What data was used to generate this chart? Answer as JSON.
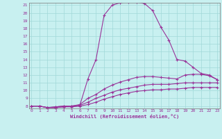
{
  "xlabel": "Windchill (Refroidissement éolien,°C)",
  "bg_color": "#c8f0f0",
  "grid_color": "#a0d8d8",
  "line_color": "#993399",
  "spine_color": "#777777",
  "xmin": 0,
  "xmax": 23,
  "ymin": 8,
  "ymax": 21,
  "curves": [
    [
      8.0,
      8.0,
      7.8,
      7.9,
      8.0,
      8.0,
      8.1,
      11.5,
      14.0,
      19.7,
      21.0,
      21.3,
      21.4,
      21.4,
      21.2,
      20.3,
      18.2,
      16.5,
      14.0,
      13.8,
      13.0,
      12.2,
      12.0,
      11.4
    ],
    [
      8.0,
      8.0,
      7.8,
      7.9,
      8.0,
      8.0,
      8.2,
      9.0,
      9.5,
      10.2,
      10.7,
      11.1,
      11.4,
      11.7,
      11.8,
      11.8,
      11.7,
      11.6,
      11.5,
      12.0,
      12.1,
      12.1,
      11.9,
      11.4
    ],
    [
      8.0,
      8.0,
      7.8,
      7.8,
      7.9,
      8.0,
      8.1,
      8.5,
      9.0,
      9.4,
      9.8,
      10.1,
      10.3,
      10.5,
      10.7,
      10.8,
      10.8,
      10.8,
      10.9,
      11.0,
      11.0,
      11.0,
      11.0,
      11.0
    ],
    [
      8.0,
      8.0,
      7.8,
      7.8,
      7.9,
      7.9,
      8.0,
      8.2,
      8.5,
      8.9,
      9.2,
      9.5,
      9.7,
      9.9,
      10.0,
      10.1,
      10.1,
      10.2,
      10.2,
      10.3,
      10.4,
      10.4,
      10.4,
      10.4
    ]
  ]
}
